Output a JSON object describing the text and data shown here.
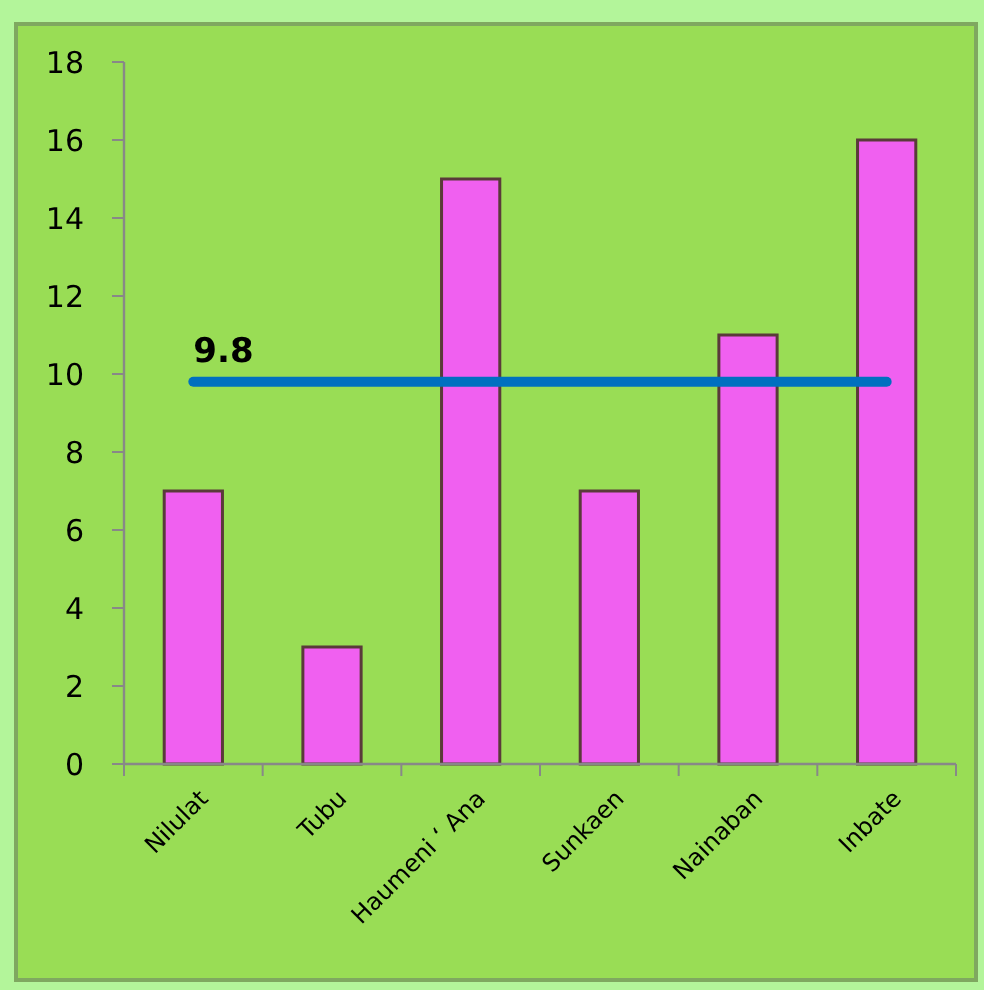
{
  "chart_data": {
    "type": "bar",
    "categories": [
      "Nilulat",
      "Tubu",
      "Haumeni ‘ Ana",
      "Sunkaen",
      "Nainaban",
      "Inbate"
    ],
    "values": [
      7,
      3,
      15,
      7,
      11,
      16
    ],
    "color": "#f060f0",
    "ylim": [
      0,
      18
    ],
    "yticks": [
      0,
      2,
      4,
      6,
      8,
      10,
      12,
      14,
      16,
      18
    ],
    "grid": false,
    "ref_lines": [
      {
        "axis": "y",
        "value": 9.8,
        "label": "9.8",
        "color": "#0070c0"
      }
    ]
  }
}
